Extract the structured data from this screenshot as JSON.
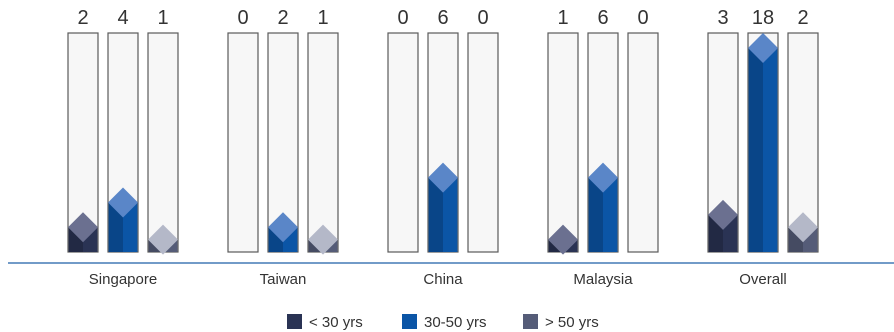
{
  "chart_data": {
    "type": "bar",
    "categories": [
      "Singapore",
      "Taiwan",
      "China",
      "Malaysia",
      "Overall"
    ],
    "series": [
      {
        "name": "< 30 yrs",
        "values": [
          2,
          0,
          0,
          1,
          3
        ],
        "color": "#2a3354",
        "top_color": "#6b7090"
      },
      {
        "name": "30-50 yrs",
        "values": [
          4,
          2,
          6,
          6,
          18
        ],
        "color": "#0b55a6",
        "top_color": "#5a86c8"
      },
      {
        "name": "> 50 yrs",
        "values": [
          1,
          1,
          0,
          0,
          2
        ],
        "color": "#555c78",
        "top_color": "#b4b8c8"
      }
    ],
    "ylim": [
      0,
      18
    ],
    "legend_position": "bottom",
    "grid": false,
    "axis_line_color": "#1f5fa8"
  }
}
